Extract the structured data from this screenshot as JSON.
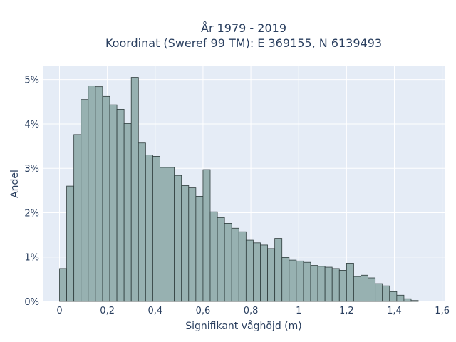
{
  "chart_data": {
    "type": "bar",
    "title_lines": [
      "År 1979 - 2019",
      "Koordinat (Sweref 99 TM): E 369155, N 6139493"
    ],
    "xlabel": "Signifikant våghöjd (m)",
    "ylabel": "Andel",
    "x_ticks": [
      {
        "value": 0,
        "label": "0"
      },
      {
        "value": 0.2,
        "label": "0,2"
      },
      {
        "value": 0.4,
        "label": "0,4"
      },
      {
        "value": 0.6,
        "label": "0,6"
      },
      {
        "value": 0.8,
        "label": "0,8"
      },
      {
        "value": 1.0,
        "label": "1"
      },
      {
        "value": 1.2,
        "label": "1,2"
      },
      {
        "value": 1.4,
        "label": "1,4"
      },
      {
        "value": 1.6,
        "label": "1,6"
      }
    ],
    "y_ticks": [
      {
        "value": 0,
        "label": "0%"
      },
      {
        "value": 1,
        "label": "1%"
      },
      {
        "value": 2,
        "label": "2%"
      },
      {
        "value": 3,
        "label": "3%"
      },
      {
        "value": 4,
        "label": "4%"
      },
      {
        "value": 5,
        "label": "5%"
      }
    ],
    "xlim": [
      -0.07,
      1.61
    ],
    "ylim": [
      0,
      5.3
    ],
    "bin_start": 0,
    "bin_width": 0.03,
    "values": [
      0.74,
      2.6,
      3.76,
      4.55,
      4.86,
      4.84,
      4.62,
      4.43,
      4.33,
      4.01,
      5.05,
      3.57,
      3.3,
      3.27,
      3.02,
      3.02,
      2.84,
      2.61,
      2.56,
      2.37,
      2.97,
      2.02,
      1.89,
      1.76,
      1.65,
      1.57,
      1.38,
      1.32,
      1.27,
      1.19,
      1.42,
      0.99,
      0.93,
      0.91,
      0.88,
      0.81,
      0.79,
      0.77,
      0.74,
      0.7,
      0.86,
      0.56,
      0.59,
      0.53,
      0.4,
      0.35,
      0.22,
      0.14,
      0.06,
      0.02
    ],
    "bar_color": "#97b1b1",
    "bar_edge_color": "#2e3c3c",
    "plot_bg": "#e5ecf6",
    "grid": true
  }
}
